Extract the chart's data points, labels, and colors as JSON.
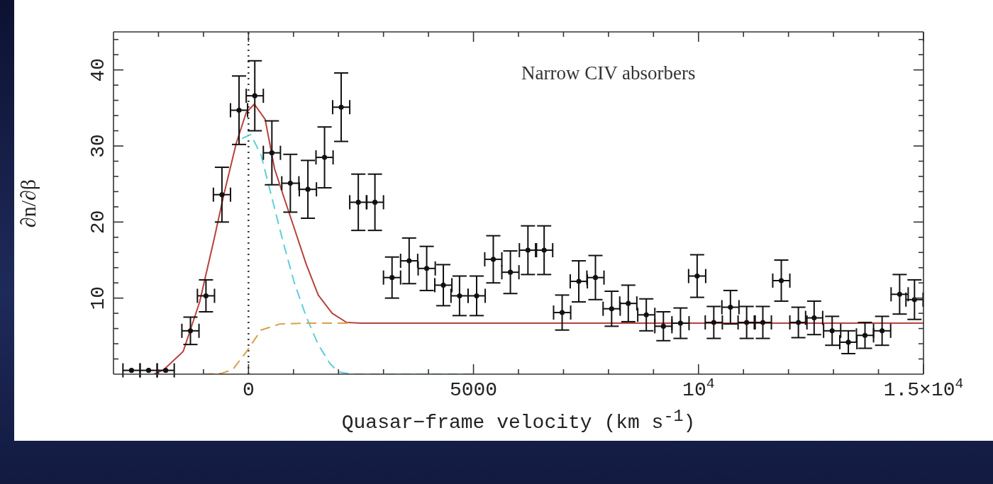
{
  "chart_data": {
    "type": "scatter",
    "xlabel": "Quasar−frame velocity (km s$^{-1}$)",
    "ylabel": "∂n/∂β",
    "annotations": [
      "Narrow CIV absorbers"
    ],
    "xlim": [
      -3000,
      15000
    ],
    "ylim": [
      0,
      45
    ],
    "xticks": [
      {
        "value": -2000,
        "label": null
      },
      {
        "value": -1000,
        "label": null
      },
      0,
      {
        "value": 1000,
        "label": null
      },
      {
        "value": 2000,
        "label": null
      },
      {
        "value": 3000,
        "label": null
      },
      {
        "value": 4000,
        "label": null
      },
      5000,
      {
        "value": 6000,
        "label": null
      },
      {
        "value": 7000,
        "label": null
      },
      {
        "value": 8000,
        "label": null
      },
      {
        "value": 9000,
        "label": null
      },
      {
        "value": 10000,
        "label": "10$^{4}$"
      },
      {
        "value": 11000,
        "label": null
      },
      {
        "value": 12000,
        "label": null
      },
      {
        "value": 13000,
        "label": null
      },
      {
        "value": 14000,
        "label": null
      },
      {
        "value": 15000,
        "label": "1.5×10$^{4}$"
      }
    ],
    "yticks": [
      {
        "value": 2,
        "label": null
      },
      {
        "value": 4,
        "label": null
      },
      {
        "value": 6,
        "label": null
      },
      {
        "value": 8,
        "label": null
      },
      10,
      {
        "value": 12,
        "label": null
      },
      {
        "value": 14,
        "label": null
      },
      {
        "value": 16,
        "label": null
      },
      {
        "value": 18,
        "label": null
      },
      20,
      {
        "value": 22,
        "label": null
      },
      {
        "value": 24,
        "label": null
      },
      {
        "value": 26,
        "label": null
      },
      {
        "value": 28,
        "label": null
      },
      30,
      {
        "value": 32,
        "label": null
      },
      {
        "value": 34,
        "label": null
      },
      {
        "value": 36,
        "label": null
      },
      {
        "value": 38,
        "label": null
      },
      40,
      {
        "value": 42,
        "label": null
      },
      {
        "value": 44,
        "label": null
      }
    ],
    "grid": false,
    "legend": false,
    "marker": "none",
    "ref_lines": [
      {
        "axis": "x",
        "value": 0,
        "color": "#333333",
        "line_style": "dotted"
      }
    ],
    "series": [
      {
        "color": "#111111",
        "x": [
          -2600,
          -2220,
          -1840,
          -1290,
          -945,
          -590,
          -210,
          140,
          520,
          930,
          1320,
          1690,
          2060,
          2440,
          2810,
          3190,
          3570,
          3960,
          4330,
          4690,
          5070,
          5440,
          5820,
          6210,
          6570,
          6970,
          7340,
          7710,
          8070,
          8440,
          8840,
          9220,
          9600,
          9970,
          10340,
          10710,
          11070,
          11430,
          11840,
          12220,
          12570,
          12970,
          13330,
          13700,
          14080,
          14470,
          14800
        ],
        "values": [
          0.5,
          0.5,
          0.5,
          5.7,
          10.3,
          23.6,
          34.7,
          36.6,
          29.1,
          25.1,
          24.3,
          28.5,
          35.1,
          22.6,
          22.6,
          12.7,
          14.9,
          13.9,
          11.7,
          10.3,
          10.3,
          15.1,
          13.4,
          16.3,
          16.3,
          8.1,
          12.2,
          12.7,
          8.6,
          9.3,
          7.8,
          6.3,
          6.7,
          12.9,
          6.8,
          8.8,
          6.8,
          6.8,
          12.3,
          6.8,
          7.4,
          5.7,
          4.2,
          5.1,
          5.7,
          10.5,
          9.8
        ],
        "errors": [
          null,
          null,
          null,
          1.8,
          2.1,
          3.6,
          4.5,
          4.6,
          4.2,
          3.8,
          3.8,
          4.0,
          4.5,
          3.7,
          3.7,
          2.7,
          3.0,
          2.9,
          2.7,
          2.6,
          2.6,
          3.1,
          2.8,
          3.2,
          3.2,
          2.3,
          2.7,
          2.9,
          2.3,
          2.4,
          2.1,
          1.9,
          2.0,
          2.8,
          2.1,
          2.2,
          2.1,
          2.1,
          2.7,
          2.0,
          2.2,
          1.9,
          1.5,
          1.7,
          1.9,
          2.6,
          2.6
        ],
        "xerrors": [
          190,
          190,
          190,
          190,
          190,
          190,
          190,
          190,
          190,
          190,
          190,
          190,
          190,
          190,
          190,
          190,
          190,
          190,
          190,
          190,
          190,
          190,
          190,
          190,
          190,
          190,
          190,
          190,
          190,
          190,
          190,
          190,
          190,
          190,
          190,
          190,
          190,
          190,
          190,
          190,
          190,
          190,
          190,
          190,
          190,
          190,
          190
        ]
      },
      {
        "type": "line",
        "color": "#b8413c",
        "line_style": "solid",
        "x": [
          -2100,
          -1880,
          -1450,
          -1085,
          -770,
          -540,
          -270,
          -50,
          130,
          370,
          580,
          790,
          1000,
          1280,
          1550,
          1860,
          2180,
          2500,
          15000
        ],
        "values": [
          0,
          0.6,
          3.0,
          9.5,
          17.6,
          23.8,
          30.4,
          34.4,
          35.5,
          33.5,
          27.0,
          23.2,
          19.5,
          14.5,
          10.4,
          8.0,
          6.8,
          6.7,
          6.7
        ]
      },
      {
        "type": "line",
        "color": "#5fcfd8",
        "line_style": "dashed",
        "x": [
          -140,
          50,
          280,
          490,
          760,
          1020,
          1280,
          1550,
          1810,
          2000,
          2300,
          5000
        ],
        "values": [
          31.0,
          31.5,
          28.8,
          23.9,
          17.6,
          12.0,
          7.6,
          3.9,
          1.4,
          0.3,
          0,
          0
        ]
      },
      {
        "type": "line",
        "color": "#d9a04a",
        "line_style": "dashed",
        "x": [
          -1000,
          -600,
          -350,
          -40,
          280,
          700,
          1280,
          2200
        ],
        "values": [
          0,
          0.1,
          0.6,
          3.0,
          5.8,
          6.6,
          6.7,
          6.7
        ]
      }
    ]
  }
}
